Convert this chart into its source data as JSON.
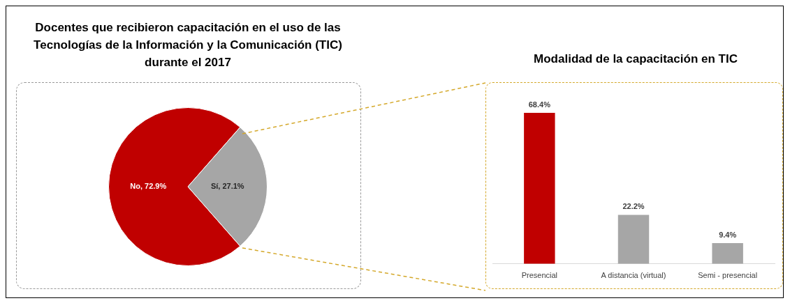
{
  "chart_data": [
    {
      "type": "pie",
      "title": "Docentes que recibieron capacitación en el uso de las Tecnologías de la Información y la Comunicación (TIC) durante el 2017",
      "categories": [
        "No",
        "Sí"
      ],
      "values": [
        72.9,
        27.1
      ],
      "colors": [
        "#c00000",
        "#a6a6a6"
      ],
      "value_labels": [
        "72.9%",
        "27.1%"
      ]
    },
    {
      "type": "bar",
      "title": "Modalidad de la capacitación en TIC",
      "categories": [
        "Presencial",
        "A distancia (virtual)",
        "Semi - presencial"
      ],
      "values": [
        68.4,
        22.2,
        9.4
      ],
      "colors": [
        "#c00000",
        "#a6a6a6",
        "#a6a6a6"
      ],
      "value_labels": [
        "68.4%",
        "22.2%",
        "9.4%"
      ]
    }
  ]
}
